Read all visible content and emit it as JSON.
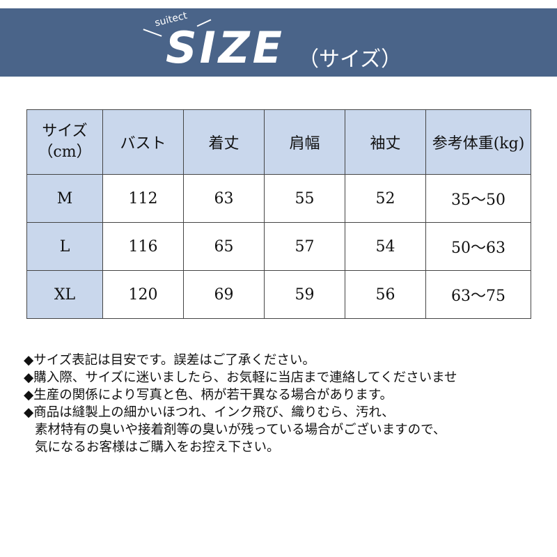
{
  "banner": {
    "brand": "suitect",
    "title": "SIZE",
    "title_kana": "（サイズ）",
    "color": "#4a6489"
  },
  "table": {
    "headers": [
      "サイズ\n（cm）",
      "バスト",
      "着丈",
      "肩幅",
      "袖丈",
      "参考体重(kg)"
    ],
    "rows": [
      [
        "M",
        "112",
        "63",
        "55",
        "52",
        "35〜50"
      ],
      [
        "L",
        "116",
        "65",
        "57",
        "54",
        "50〜63"
      ],
      [
        "XL",
        "120",
        "69",
        "59",
        "56",
        "63〜75"
      ]
    ],
    "header_color": "#c9d7ec"
  },
  "notes": [
    "◆サイズ表記は目安です。誤差はご了承ください。",
    "◆購入際、サイズに迷いましたら、お気軽に当店まで連絡してくださいませ",
    "◆生産の関係により写真と色、柄が若干異なる場合があります。",
    "◆商品は縫製上の細かいほつれ、インク飛び、織りむら、汚れ、",
    "素材特有の臭いや接着剤等の臭いが残っている場合がございますので、",
    "気になるお客様はご購入をお控え下さい。"
  ]
}
